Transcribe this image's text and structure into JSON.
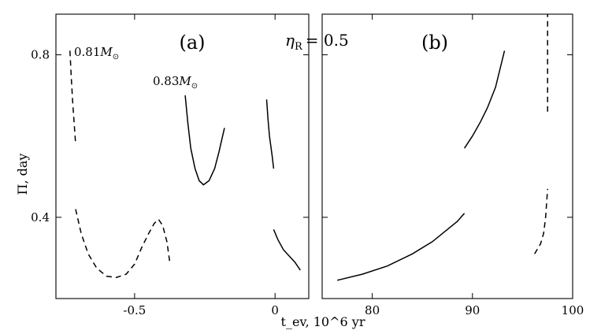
{
  "chart_data": [
    {
      "type": "line",
      "panel_label": "(a)",
      "parameter_label": "η_R = 0.5",
      "parameter": {
        "symbol": "η",
        "subscript": "R",
        "value": "= 0.5"
      },
      "ylabel": "Π, day",
      "xlabel": "t_ev, 10^6 yr",
      "ylim": [
        0.2,
        0.9
      ],
      "xlim": [
        -0.78,
        0.12
      ],
      "x_ticks": [
        {
          "value": -0.5,
          "label": "-0.5"
        },
        {
          "value": 0,
          "label": "0"
        }
      ],
      "y_ticks": [
        {
          "value": 0.4,
          "label": "0.4"
        },
        {
          "value": 0.8,
          "label": "0.8"
        }
      ],
      "mass_labels": [
        {
          "id": "m081",
          "value": "0.81",
          "unit": "M",
          "sub": "⊙"
        },
        {
          "id": "m083",
          "value": "0.83",
          "unit": "M",
          "sub": "⊙"
        }
      ],
      "series": [
        {
          "style": "dashed",
          "x": [
            -0.73,
            -0.725,
            -0.72,
            -0.715,
            -0.71
          ],
          "y": [
            0.81,
            0.74,
            0.68,
            0.63,
            0.58
          ]
        },
        {
          "style": "dashed",
          "x": [
            -0.71,
            -0.69,
            -0.665,
            -0.635,
            -0.6,
            -0.565,
            -0.53,
            -0.5,
            -0.475,
            -0.45,
            -0.43,
            -0.415,
            -0.4,
            -0.385,
            -0.375
          ],
          "y": [
            0.42,
            0.36,
            0.31,
            0.275,
            0.255,
            0.252,
            0.26,
            0.285,
            0.325,
            0.36,
            0.385,
            0.395,
            0.38,
            0.34,
            0.29
          ]
        },
        {
          "style": "solid",
          "x": [
            -0.32,
            -0.31,
            -0.3,
            -0.285,
            -0.27,
            -0.255,
            -0.235,
            -0.215,
            -0.2,
            -0.19,
            -0.18
          ],
          "y": [
            0.7,
            0.63,
            0.57,
            0.52,
            0.49,
            0.48,
            0.49,
            0.52,
            0.56,
            0.59,
            0.62
          ]
        },
        {
          "style": "solid",
          "x": [
            -0.03,
            -0.025,
            -0.02,
            -0.01,
            -0.005
          ],
          "y": [
            0.69,
            0.64,
            0.6,
            0.55,
            0.52
          ]
        },
        {
          "style": "solid",
          "x": [
            -0.005,
            0.01,
            0.03,
            0.05,
            0.07,
            0.09
          ],
          "y": [
            0.37,
            0.345,
            0.32,
            0.305,
            0.29,
            0.27
          ]
        }
      ]
    },
    {
      "type": "line",
      "panel_label": "(b)",
      "ylim": [
        0.2,
        0.9
      ],
      "xlim": [
        75,
        100
      ],
      "x_ticks": [
        {
          "value": 80,
          "label": "80"
        },
        {
          "value": 90,
          "label": "90"
        },
        {
          "value": 100,
          "label": "100"
        }
      ],
      "series": [
        {
          "style": "solid",
          "x": [
            76.5,
            79,
            81.5,
            84,
            86,
            87.5,
            88.5,
            89.2
          ],
          "y": [
            0.245,
            0.26,
            0.28,
            0.31,
            0.34,
            0.37,
            0.39,
            0.41
          ]
        },
        {
          "style": "solid",
          "x": [
            89.2,
            90,
            90.8,
            91.5,
            92.3,
            93.2
          ],
          "y": [
            0.57,
            0.6,
            0.635,
            0.67,
            0.72,
            0.81
          ]
        },
        {
          "style": "dashed",
          "x": [
            97.5,
            97.5
          ],
          "y": [
            0.66,
            0.9
          ]
        },
        {
          "style": "dashed",
          "x": [
            96.2,
            96.8,
            97.1,
            97.3,
            97.5
          ],
          "y": [
            0.31,
            0.335,
            0.36,
            0.4,
            0.47
          ]
        }
      ]
    }
  ]
}
